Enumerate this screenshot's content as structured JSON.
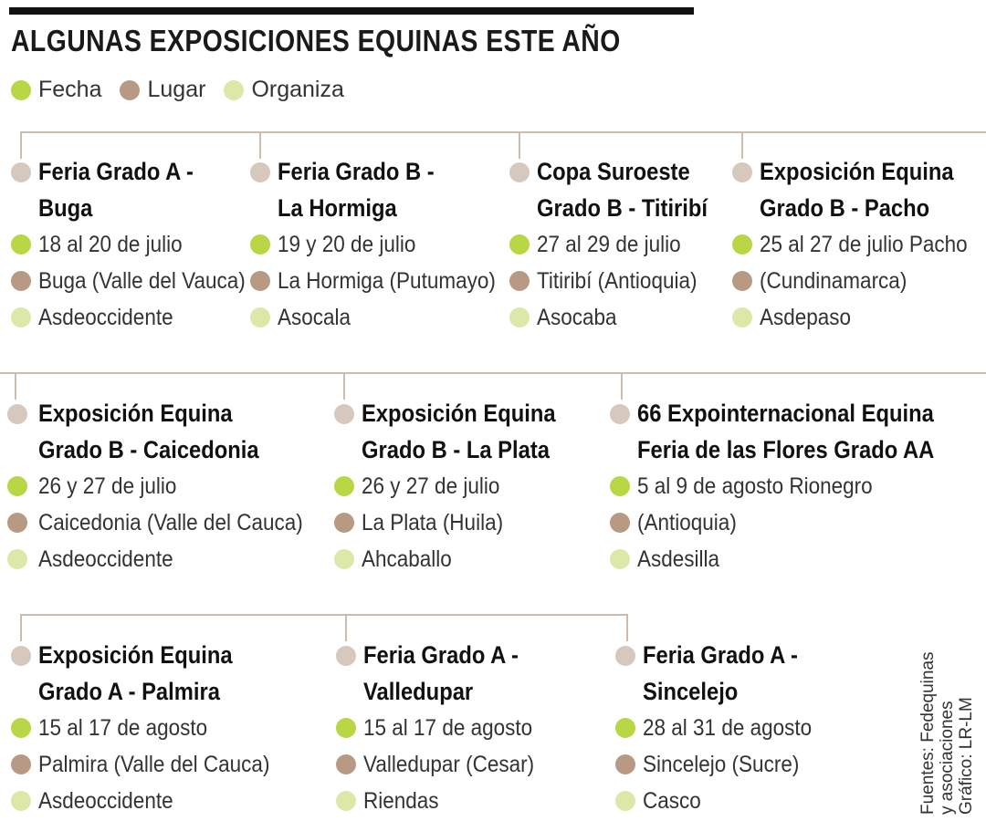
{
  "title": "ALGUNAS EXPOSICIONES EQUINAS ESTE AÑO",
  "legend": {
    "fecha": "Fecha",
    "lugar": "Lugar",
    "organiza": "Organiza"
  },
  "colors": {
    "head_dot": "#d6c8bc",
    "fecha_dot": "#b9d645",
    "lugar_dot": "#b89a84",
    "organiza_dot": "#dce8a8",
    "connector": "#cbbcaf"
  },
  "events": [
    {
      "title": "Feria Grado A -\nBuga",
      "fecha": "18 al 20 de julio",
      "lugar": "Buga (Valle del Vauca)",
      "organiza": "Asdeoccidente"
    },
    {
      "title": "Feria Grado B -\nLa Hormiga",
      "fecha": "19 y 20 de julio",
      "lugar": "La Hormiga (Putumayo)",
      "organiza": "Asocala"
    },
    {
      "title": "Copa Suroeste\nGrado B - Titiribí",
      "fecha": "27 al 29 de julio",
      "lugar": "Titiribí (Antioquia)",
      "organiza": "Asocaba"
    },
    {
      "title": "Exposición Equina\nGrado B - Pacho",
      "fecha": "25 al 27 de julio  Pacho",
      "lugar": "(Cundinamarca)",
      "organiza": "Asdepaso"
    },
    {
      "title": "Exposición Equina\nGrado B - Caicedonia",
      "fecha": "26 y 27 de julio",
      "lugar": "Caicedonia (Valle del Cauca)",
      "organiza": "Asdeoccidente"
    },
    {
      "title": "Exposición Equina\nGrado B - La Plata",
      "fecha": "26 y 27 de julio",
      "lugar": "La Plata (Huila)",
      "organiza": "Ahcaballo"
    },
    {
      "title": "66 Expointernacional Equina\nFeria de las Flores Grado AA",
      "fecha": "5 al 9 de agosto Rionegro",
      "lugar": "(Antioquia)",
      "organiza": "Asdesilla"
    },
    {
      "title": "Exposición Equina\nGrado A - Palmira",
      "fecha": "15 al 17 de agosto",
      "lugar": "Palmira (Valle del Cauca)",
      "organiza": "Asdeoccidente"
    },
    {
      "title": "Feria Grado A -\nValledupar",
      "fecha": "15 al 17 de agosto",
      "lugar": "Valledupar (Cesar)",
      "organiza": "Riendas"
    },
    {
      "title": "Feria Grado A -\nSincelejo",
      "fecha": "28 al 31 de agosto",
      "lugar": "Sincelejo (Sucre)",
      "organiza": "Casco"
    }
  ],
  "credits": "Fuentes: Fedequinas\ny asociaciones\nGráfico: LR-LM"
}
